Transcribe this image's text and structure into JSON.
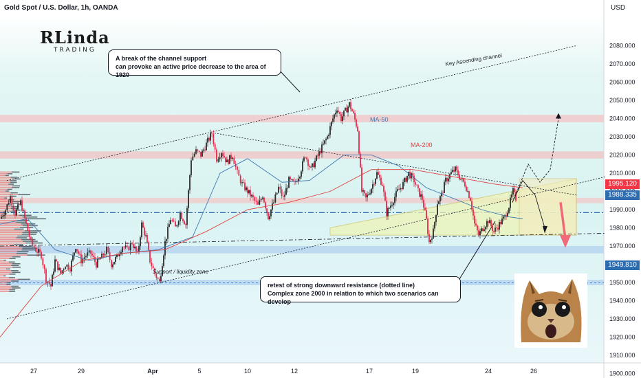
{
  "header": {
    "symbol_title": "Gold Spot / U.S. Dollar, 1h, OANDA",
    "currency": "USD"
  },
  "logo": {
    "brand": "RLinda",
    "sub": "TRADING"
  },
  "annotations": {
    "callout_top_line1": "A break of the channel support",
    "callout_top_line2": "can provoke an active price decrease to the area of 1920",
    "callout_bottom_line1": "retest of strong downward resistance (dotted line)",
    "callout_bottom_line2": "Complex zone 2000 in relation to which two scenarios can develop",
    "channel_label": "Key Ascending channel",
    "support_label": "Support / liquidity zone",
    "ma50_label": "MA-50",
    "ma200_label": "MA-200"
  },
  "price_tags": {
    "tag1": "1995.120",
    "tag2": "1988.335",
    "tag3": "1949.810"
  },
  "colors": {
    "bull": "#26a69a",
    "bear": "#ef5350",
    "candle": "#e8294a",
    "ma50": "#3f78b0",
    "ma200": "#e0403c",
    "tag_red": "#f23645",
    "tag_blue": "#2e6cb0",
    "band_pink": "#f3c6c6",
    "band_blue": "#b9d7f1",
    "bg_top": "#dff4f3",
    "bg_bottom": "#e2f5fb"
  },
  "chart_data": {
    "type": "candlestick",
    "title": "Gold Spot / U.S. Dollar, 1h, OANDA",
    "ylabel": "USD",
    "ylim": [
      1895,
      2090
    ],
    "y_ticks": [
      1900,
      1910,
      1920,
      1930,
      1940,
      1950,
      1960,
      1970,
      1980,
      1990,
      2000,
      2010,
      2020,
      2030,
      2040,
      2050,
      2060,
      2070,
      2080
    ],
    "y_tick_labels": [
      "1900.000",
      "1910.000",
      "1920.000",
      "1930.000",
      "1940.000",
      "1950.000",
      "1960.000",
      "1970.000",
      "1980.000",
      "1990.000",
      "2000.000",
      "2010.000",
      "2020.000",
      "2030.000",
      "2040.000",
      "2050.000",
      "2060.000",
      "2070.000",
      "2080.000"
    ],
    "x_tick_labels": [
      "27",
      "29",
      "Apr",
      "5",
      "10",
      "12",
      "17",
      "19",
      "24",
      "26"
    ],
    "price_path": [
      [
        0,
        1985
      ],
      [
        8,
        1990
      ],
      [
        15,
        1997
      ],
      [
        22,
        1988
      ],
      [
        30,
        1994
      ],
      [
        38,
        1982
      ],
      [
        45,
        1972
      ],
      [
        52,
        1968
      ],
      [
        60,
        1965
      ],
      [
        67,
        1952
      ],
      [
        74,
        1948
      ],
      [
        80,
        1962
      ],
      [
        88,
        1955
      ],
      [
        95,
        1960
      ],
      [
        102,
        1958
      ],
      [
        110,
        1970
      ],
      [
        118,
        1962
      ],
      [
        125,
        1965
      ],
      [
        132,
        1966
      ],
      [
        140,
        1960
      ],
      [
        148,
        1964
      ],
      [
        155,
        1968
      ],
      [
        162,
        1960
      ],
      [
        170,
        1964
      ],
      [
        178,
        1970
      ],
      [
        185,
        1968
      ],
      [
        192,
        1972
      ],
      [
        200,
        1965
      ],
      [
        206,
        1982
      ],
      [
        212,
        1975
      ],
      [
        218,
        1962
      ],
      [
        225,
        1955
      ],
      [
        232,
        1950
      ],
      [
        240,
        1972
      ],
      [
        248,
        1985
      ],
      [
        255,
        1980
      ],
      [
        262,
        1988
      ],
      [
        270,
        1982
      ],
      [
        278,
        2018
      ],
      [
        285,
        2022
      ],
      [
        292,
        2020
      ],
      [
        300,
        2026
      ],
      [
        308,
        2032
      ],
      [
        315,
        2018
      ],
      [
        322,
        2022
      ],
      [
        330,
        2016
      ],
      [
        338,
        2020
      ],
      [
        345,
        2010
      ],
      [
        352,
        2004
      ],
      [
        360,
        2000
      ],
      [
        368,
        1996
      ],
      [
        375,
        1992
      ],
      [
        382,
        1998
      ],
      [
        390,
        1986
      ],
      [
        398,
        1994
      ],
      [
        405,
        2002
      ],
      [
        412,
        1996
      ],
      [
        420,
        2006
      ],
      [
        428,
        2004
      ],
      [
        436,
        2010
      ],
      [
        444,
        2020
      ],
      [
        452,
        2012
      ],
      [
        460,
        2018
      ],
      [
        468,
        2024
      ],
      [
        476,
        2030
      ],
      [
        484,
        2040
      ],
      [
        490,
        2046
      ],
      [
        496,
        2040
      ],
      [
        502,
        2044
      ],
      [
        508,
        2048
      ],
      [
        514,
        2042
      ],
      [
        520,
        2034
      ],
      [
        526,
        2000
      ],
      [
        532,
        1996
      ],
      [
        540,
        2002
      ],
      [
        548,
        2010
      ],
      [
        556,
        2004
      ],
      [
        562,
        1988
      ],
      [
        570,
        1994
      ],
      [
        578,
        2000
      ],
      [
        586,
        2004
      ],
      [
        594,
        2010
      ],
      [
        602,
        2006
      ],
      [
        608,
        2000
      ],
      [
        614,
        1996
      ],
      [
        620,
        1984
      ],
      [
        624,
        1972
      ],
      [
        630,
        1978
      ],
      [
        636,
        1994
      ],
      [
        642,
        1998
      ],
      [
        648,
        2006
      ],
      [
        656,
        2010
      ],
      [
        662,
        2012
      ],
      [
        668,
        2008
      ],
      [
        676,
        2004
      ],
      [
        684,
        1996
      ],
      [
        690,
        1982
      ],
      [
        696,
        1976
      ],
      [
        702,
        1980
      ],
      [
        710,
        1984
      ],
      [
        718,
        1978
      ],
      [
        726,
        1982
      ],
      [
        734,
        1986
      ],
      [
        740,
        1992
      ],
      [
        746,
        2000
      ],
      [
        750,
        1996
      ]
    ],
    "ma50": [
      [
        0,
        1982
      ],
      [
        40,
        1985
      ],
      [
        80,
        1968
      ],
      [
        130,
        1962
      ],
      [
        180,
        1966
      ],
      [
        230,
        1968
      ],
      [
        280,
        1975
      ],
      [
        320,
        2010
      ],
      [
        360,
        2018
      ],
      [
        410,
        2005
      ],
      [
        450,
        2006
      ],
      [
        500,
        2020
      ],
      [
        540,
        2020
      ],
      [
        580,
        2014
      ],
      [
        620,
        2002
      ],
      [
        660,
        1996
      ],
      [
        700,
        1990
      ],
      [
        740,
        1986
      ],
      [
        760,
        1985
      ]
    ],
    "ma200": [
      [
        0,
        1920
      ],
      [
        60,
        1948
      ],
      [
        120,
        1962
      ],
      [
        180,
        1966
      ],
      [
        240,
        1968
      ],
      [
        300,
        1978
      ],
      [
        360,
        1990
      ],
      [
        420,
        1994
      ],
      [
        480,
        2000
      ],
      [
        540,
        2012
      ],
      [
        600,
        2012
      ],
      [
        660,
        2008
      ],
      [
        720,
        2004
      ],
      [
        760,
        2002
      ]
    ],
    "levels": [
      2040,
      2020,
      1995.12,
      1988.335,
      1967.5,
      1949.81
    ],
    "channel_upper": [
      [
        10,
        2006
      ],
      [
        838,
        2080
      ]
    ],
    "channel_lower": [
      [
        10,
        1930
      ],
      [
        880,
        2008
      ]
    ],
    "trend_down": [
      [
        312,
        2032
      ],
      [
        838,
        1998
      ]
    ],
    "scenario_up": [
      [
        745,
        1994
      ],
      [
        768,
        2015
      ],
      [
        785,
        2005
      ],
      [
        800,
        2012
      ],
      [
        812,
        2040
      ]
    ],
    "scenario_down": [
      [
        745,
        1994
      ],
      [
        760,
        2006
      ],
      [
        778,
        1998
      ],
      [
        792,
        1980
      ]
    ]
  }
}
